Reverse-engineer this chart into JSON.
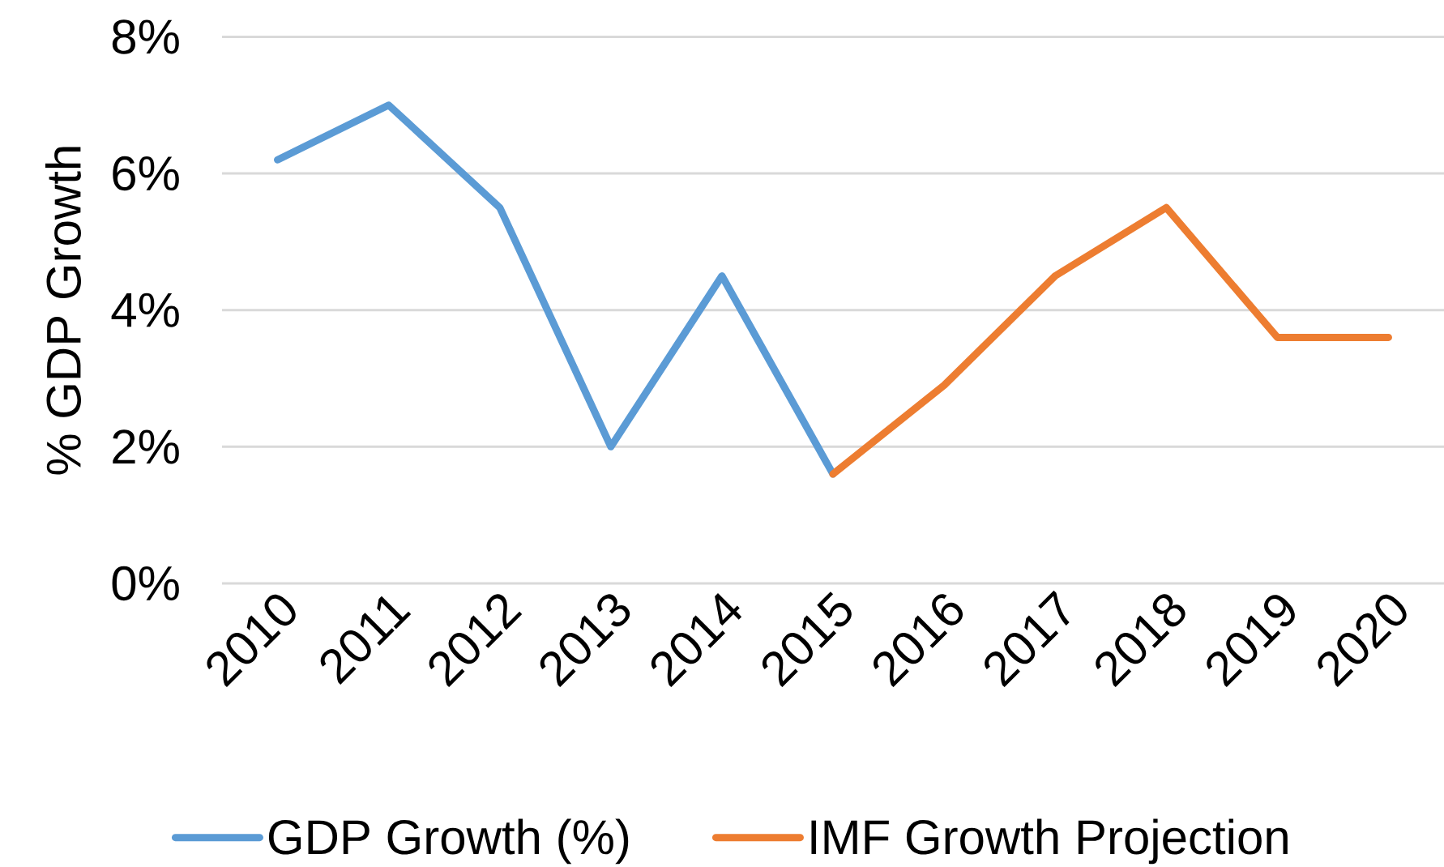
{
  "chart_data": {
    "type": "line",
    "ylabel": "% GDP Growth",
    "categories": [
      "2010",
      "2011",
      "2012",
      "2013",
      "2014",
      "2015",
      "2016",
      "2017",
      "2018",
      "2019",
      "2020"
    ],
    "series": [
      {
        "name": "GDP Growth (%)",
        "color": "#5b9bd5",
        "values": [
          6.2,
          7.0,
          5.5,
          2.0,
          4.5,
          1.6,
          null,
          null,
          null,
          null,
          null
        ]
      },
      {
        "name": "IMF Growth Projection",
        "color": "#ed7d31",
        "values": [
          null,
          null,
          null,
          null,
          null,
          1.6,
          2.9,
          4.5,
          5.5,
          3.6,
          3.6
        ]
      }
    ],
    "ylim": [
      0,
      8
    ],
    "yticks": [
      {
        "value": 0,
        "label": "0%"
      },
      {
        "value": 2,
        "label": "2%"
      },
      {
        "value": 4,
        "label": "4%"
      },
      {
        "value": 6,
        "label": "6%"
      },
      {
        "value": 8,
        "label": "8%"
      }
    ],
    "grid": "y",
    "legend": "bottom",
    "marker": "none",
    "line_style": "solid"
  }
}
